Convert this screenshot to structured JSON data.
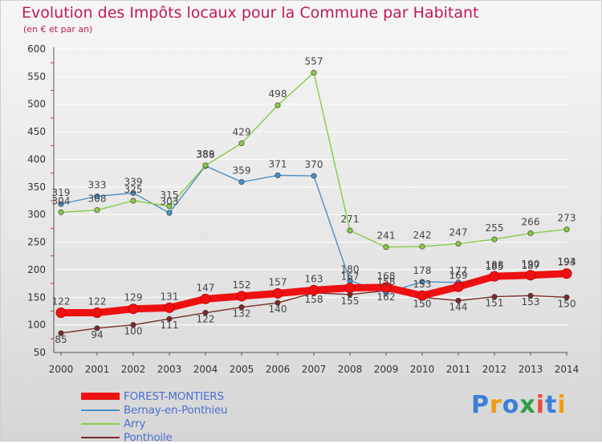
{
  "title": "Evolution des Impôts locaux pour la Commune par Habitant",
  "subtitle": "(en € et par an)",
  "logo": {
    "text": "Proxiti",
    "letters": [
      "P",
      "r",
      "o",
      "x",
      "i",
      "t",
      "i"
    ],
    "colors": [
      "#3b7fd6",
      "#f39c12",
      "#3b7fd6",
      "#2e9e48",
      "#e84d3c",
      "#3b7fd6",
      "#f39c12"
    ]
  },
  "chart_data": {
    "type": "line",
    "title": "Evolution des Impôts locaux pour la Commune par Habitant",
    "subtitle": "(en € et par an)",
    "xlabel": "",
    "ylabel": "",
    "ylim": [
      50,
      600
    ],
    "yticks": [
      "50",
      "100",
      "150",
      "200",
      "250",
      "300",
      "350",
      "400",
      "450",
      "500",
      "550",
      "600"
    ],
    "categories": [
      "2000",
      "2001",
      "2002",
      "2003",
      "2004",
      "2005",
      "2006",
      "2007",
      "2008",
      "2009",
      "2010",
      "2011",
      "2012",
      "2013",
      "2014"
    ],
    "grid": "horizontal",
    "legend_position": "bottom-left",
    "series": [
      {
        "name": "FOREST-MONTIERS",
        "color": "#ee1111",
        "values": [
          122,
          122,
          129,
          131,
          147,
          152,
          157,
          163,
          167,
          168,
          153,
          169,
          188,
          190,
          193
        ],
        "labels": [
          "122",
          "122",
          "129",
          "131",
          "147",
          "152",
          "157",
          "163",
          "167",
          "168",
          "153",
          "169",
          "188",
          "190",
          "193"
        ]
      },
      {
        "name": "Bernay-en-Ponthieu",
        "color": "#4a90c8",
        "values": [
          319,
          333,
          339,
          303,
          388,
          359,
          371,
          370,
          180,
          158,
          178,
          177,
          185,
          187,
          194
        ],
        "labels": [
          "319",
          "333",
          "339",
          "303",
          "388",
          "359",
          "371",
          "370",
          "180",
          "158",
          "178",
          "177",
          "185",
          "187",
          "194"
        ]
      },
      {
        "name": "Arry",
        "color": "#88cc44",
        "values": [
          304,
          308,
          325,
          315,
          389,
          429,
          498,
          557,
          271,
          241,
          242,
          247,
          255,
          266,
          273
        ],
        "labels": [
          "304",
          "308",
          "325",
          "315",
          "389",
          "429",
          "498",
          "557",
          "271",
          "241",
          "242",
          "247",
          "255",
          "266",
          "273"
        ]
      },
      {
        "name": "Ponthoile",
        "color": "#7a2a2a",
        "values": [
          85,
          94,
          100,
          111,
          122,
          132,
          140,
          158,
          155,
          162,
          150,
          144,
          151,
          153,
          150
        ],
        "labels": [
          "85",
          "94",
          "100",
          "111",
          "122",
          "132",
          "140",
          "158",
          "155",
          "162",
          "150",
          "144",
          "151",
          "153",
          "150"
        ]
      }
    ]
  }
}
